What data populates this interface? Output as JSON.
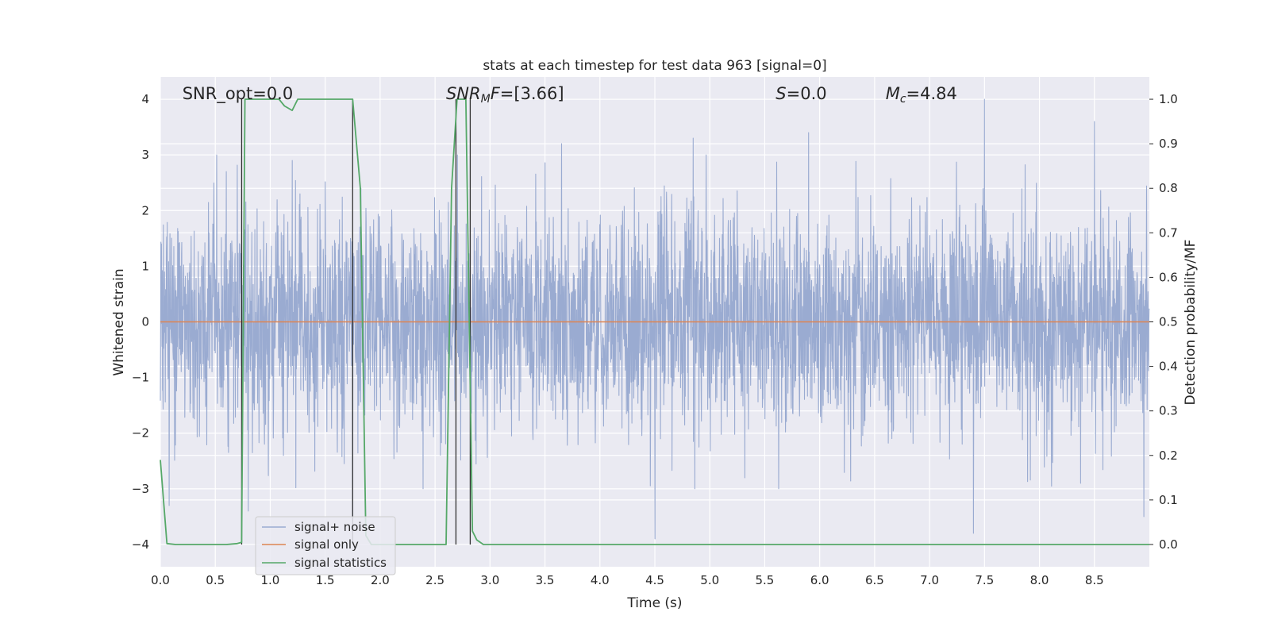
{
  "chart_data": {
    "type": "line",
    "title": "stats at each timestep for test data 963 [signal=0]",
    "xlabel": "Time (s)",
    "ylabel_left": "Whitened strain",
    "ylabel_right": "Detection probability/MF",
    "xlim": [
      0.0,
      9.0
    ],
    "ylim_left": [
      -4.4,
      4.4
    ],
    "ylim_right": [
      -0.05,
      1.05
    ],
    "xticks": [
      "0.0",
      "0.5",
      "1.0",
      "1.5",
      "2.0",
      "2.5",
      "3.0",
      "3.5",
      "4.0",
      "4.5",
      "5.0",
      "5.5",
      "6.0",
      "6.5",
      "7.0",
      "7.5",
      "8.0",
      "8.5"
    ],
    "yticks_left": [
      "4",
      "3",
      "2",
      "1",
      "0",
      "−1",
      "−2",
      "−3",
      "−4"
    ],
    "yticks_right": [
      "1.0",
      "0.9",
      "0.8",
      "0.7",
      "0.6",
      "0.5",
      "0.4",
      "0.3",
      "0.2",
      "0.1",
      "0.0"
    ],
    "grid": true,
    "legend_position": "lower-left",
    "colors": {
      "background": "#eaeaf2",
      "grid": "#ffffff",
      "noise": "#9aabd1",
      "signal_only": "#dd8452",
      "statistics": "#55a868",
      "vlines": "#333333"
    },
    "annotations": [
      {
        "text": "SNR_opt=0.0",
        "x": 0.2,
        "y": 4.1
      },
      {
        "text": "SNR_MF=[3.66]",
        "x": 2.6,
        "y": 4.1
      },
      {
        "text": "S=0.0",
        "x": 5.6,
        "y": 4.1
      },
      {
        "text": "M_c=4.84",
        "x": 6.6,
        "y": 4.1
      }
    ],
    "vertical_lines_x": [
      0.74,
      1.75,
      2.69,
      2.82
    ],
    "series": [
      {
        "name": "signal+ noise",
        "axis": "left",
        "description_values": "whitened noise, roughly gaussian with std ~1, range approx -3.9 to 4.0",
        "peaks": [
          {
            "x": 0.08,
            "y": -3.3
          },
          {
            "x": 0.6,
            "y": 2.7
          },
          {
            "x": 0.8,
            "y": -3.4
          },
          {
            "x": 1.2,
            "y": 2.9
          },
          {
            "x": 1.75,
            "y": -3.5
          },
          {
            "x": 3.65,
            "y": 3.2
          },
          {
            "x": 4.5,
            "y": -3.9
          },
          {
            "x": 4.85,
            "y": 3.3
          },
          {
            "x": 5.9,
            "y": 3.4
          },
          {
            "x": 7.4,
            "y": -3.8
          },
          {
            "x": 7.5,
            "y": 4.0
          },
          {
            "x": 8.5,
            "y": 3.6
          },
          {
            "x": 8.95,
            "y": -3.5
          }
        ]
      },
      {
        "name": "signal only",
        "axis": "left",
        "x": [
          0.0,
          9.0
        ],
        "y": [
          0.0,
          0.0
        ]
      },
      {
        "name": "signal statistics",
        "axis": "right",
        "x": [
          0.0,
          0.06,
          0.14,
          0.3,
          0.6,
          0.7,
          0.74,
          0.77,
          0.8,
          1.0,
          1.08,
          1.13,
          1.2,
          1.25,
          1.5,
          1.75,
          1.82,
          1.87,
          1.92,
          2.0,
          2.4,
          2.6,
          2.65,
          2.7,
          2.78,
          2.84,
          2.88,
          2.94,
          3.1,
          9.0
        ],
        "y": [
          0.19,
          0.002,
          0.0,
          0.0,
          0.0,
          0.002,
          0.005,
          1.0,
          1.0,
          1.0,
          1.0,
          0.985,
          0.975,
          1.0,
          1.0,
          1.0,
          0.8,
          0.02,
          0.0,
          0.0,
          0.0,
          0.0,
          0.8,
          1.0,
          1.0,
          0.03,
          0.01,
          0.0,
          0.0,
          0.0
        ]
      }
    ]
  }
}
